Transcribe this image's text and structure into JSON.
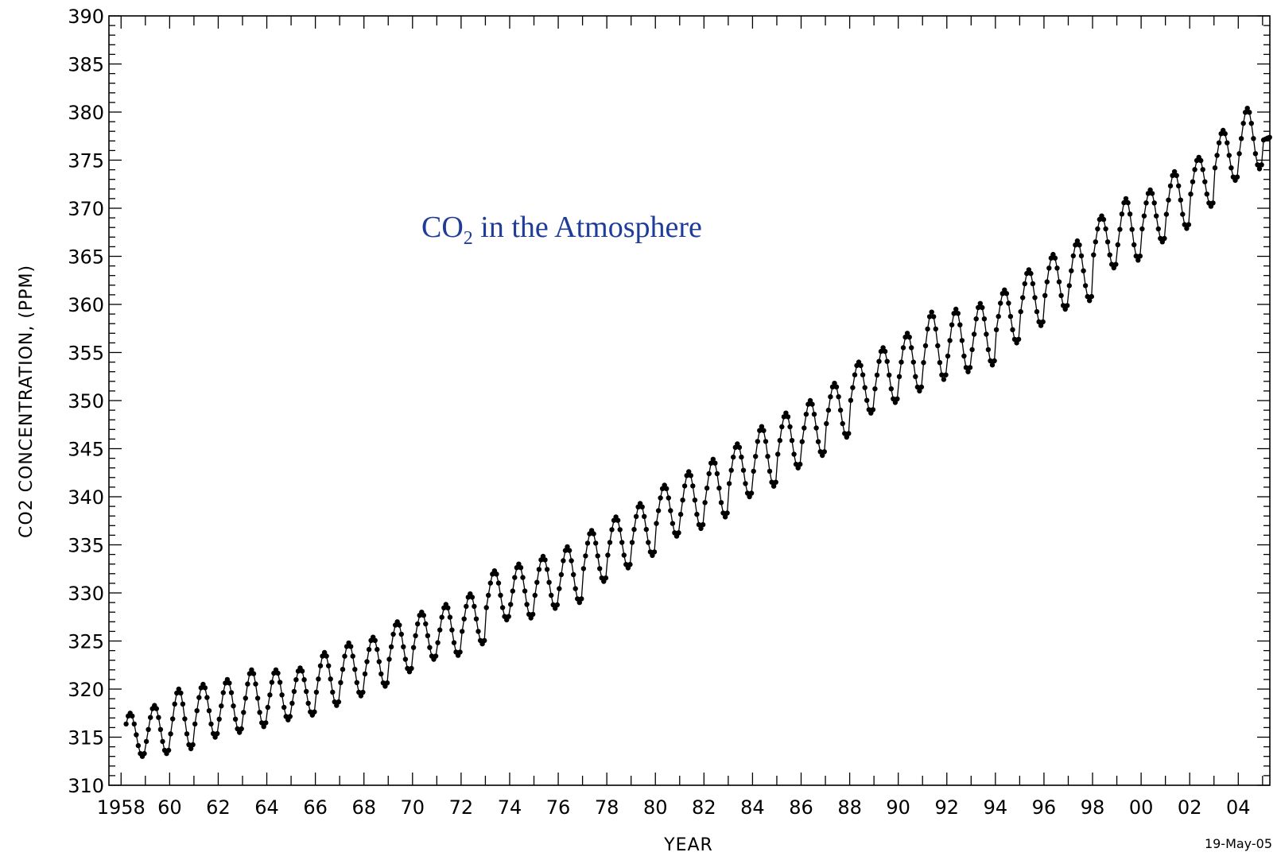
{
  "chart_data": {
    "type": "line",
    "title_main": "CO",
    "title_sub": "2",
    "title_rest": " in the Atmosphere",
    "xlabel": "YEAR",
    "ylabel": "CO2 CONCENTRATION, (PPM)",
    "date_stamp": "19-May-05",
    "xlim": [
      1957.5,
      2005.3
    ],
    "ylim": [
      310,
      390
    ],
    "x_ticks": [
      {
        "value": 1958,
        "label": "1958"
      },
      {
        "value": 1960,
        "label": "60"
      },
      {
        "value": 1962,
        "label": "62"
      },
      {
        "value": 1964,
        "label": "64"
      },
      {
        "value": 1966,
        "label": "66"
      },
      {
        "value": 1968,
        "label": "68"
      },
      {
        "value": 1970,
        "label": "70"
      },
      {
        "value": 1972,
        "label": "72"
      },
      {
        "value": 1974,
        "label": "74"
      },
      {
        "value": 1976,
        "label": "76"
      },
      {
        "value": 1978,
        "label": "78"
      },
      {
        "value": 1980,
        "label": "80"
      },
      {
        "value": 1982,
        "label": "82"
      },
      {
        "value": 1984,
        "label": "84"
      },
      {
        "value": 1986,
        "label": "86"
      },
      {
        "value": 1988,
        "label": "88"
      },
      {
        "value": 1990,
        "label": "90"
      },
      {
        "value": 1992,
        "label": "92"
      },
      {
        "value": 1994,
        "label": "94"
      },
      {
        "value": 1996,
        "label": "96"
      },
      {
        "value": 1998,
        "label": "98"
      },
      {
        "value": 2000,
        "label": "00"
      },
      {
        "value": 2002,
        "label": "02"
      },
      {
        "value": 2004,
        "label": "04"
      }
    ],
    "y_ticks": [
      310,
      315,
      320,
      325,
      330,
      335,
      340,
      345,
      350,
      355,
      360,
      365,
      370,
      375,
      380,
      385,
      390
    ],
    "series": [
      {
        "years": [
          1958,
          1959,
          1960,
          1961,
          1962,
          1963,
          1964,
          1965,
          1966,
          1967,
          1968,
          1969,
          1970,
          1971,
          1972,
          1973,
          1974,
          1975,
          1976,
          1977,
          1978,
          1979,
          1980,
          1981,
          1982,
          1983,
          1984,
          1985,
          1986,
          1987,
          1988,
          1989,
          1990,
          1991,
          1992,
          1993,
          1994,
          1995,
          1996,
          1997,
          1998,
          1999,
          2000,
          2001,
          2002,
          2003,
          2004,
          2005
        ],
        "peak_ppm": [
          317.5,
          318.3,
          320.0,
          320.5,
          321.0,
          322.0,
          322.0,
          322.2,
          323.8,
          324.8,
          325.4,
          327.0,
          328.0,
          328.8,
          329.9,
          332.3,
          333.0,
          333.8,
          334.8,
          336.5,
          337.9,
          339.3,
          341.2,
          342.6,
          343.9,
          345.5,
          347.3,
          348.7,
          350.0,
          351.8,
          354.0,
          355.5,
          357.0,
          359.2,
          359.5,
          360.1,
          361.5,
          363.6,
          365.2,
          366.6,
          369.2,
          371.0,
          371.9,
          373.8,
          375.3,
          378.1,
          380.4,
          377.4
        ],
        "trough_ppm": [
          313.0,
          313.3,
          313.8,
          315.0,
          315.5,
          316.1,
          316.8,
          317.3,
          318.3,
          319.3,
          320.3,
          321.8,
          323.1,
          323.5,
          324.7,
          327.2,
          327.4,
          328.4,
          329.0,
          331.2,
          332.6,
          333.9,
          335.9,
          336.7,
          337.9,
          340.0,
          341.1,
          343.0,
          344.3,
          346.2,
          348.7,
          349.8,
          351.0,
          352.2,
          353.0,
          353.7,
          356.0,
          357.8,
          359.5,
          360.4,
          363.8,
          364.6,
          366.5,
          367.9,
          370.2,
          372.9,
          374.1,
          377.0
        ]
      }
    ]
  }
}
